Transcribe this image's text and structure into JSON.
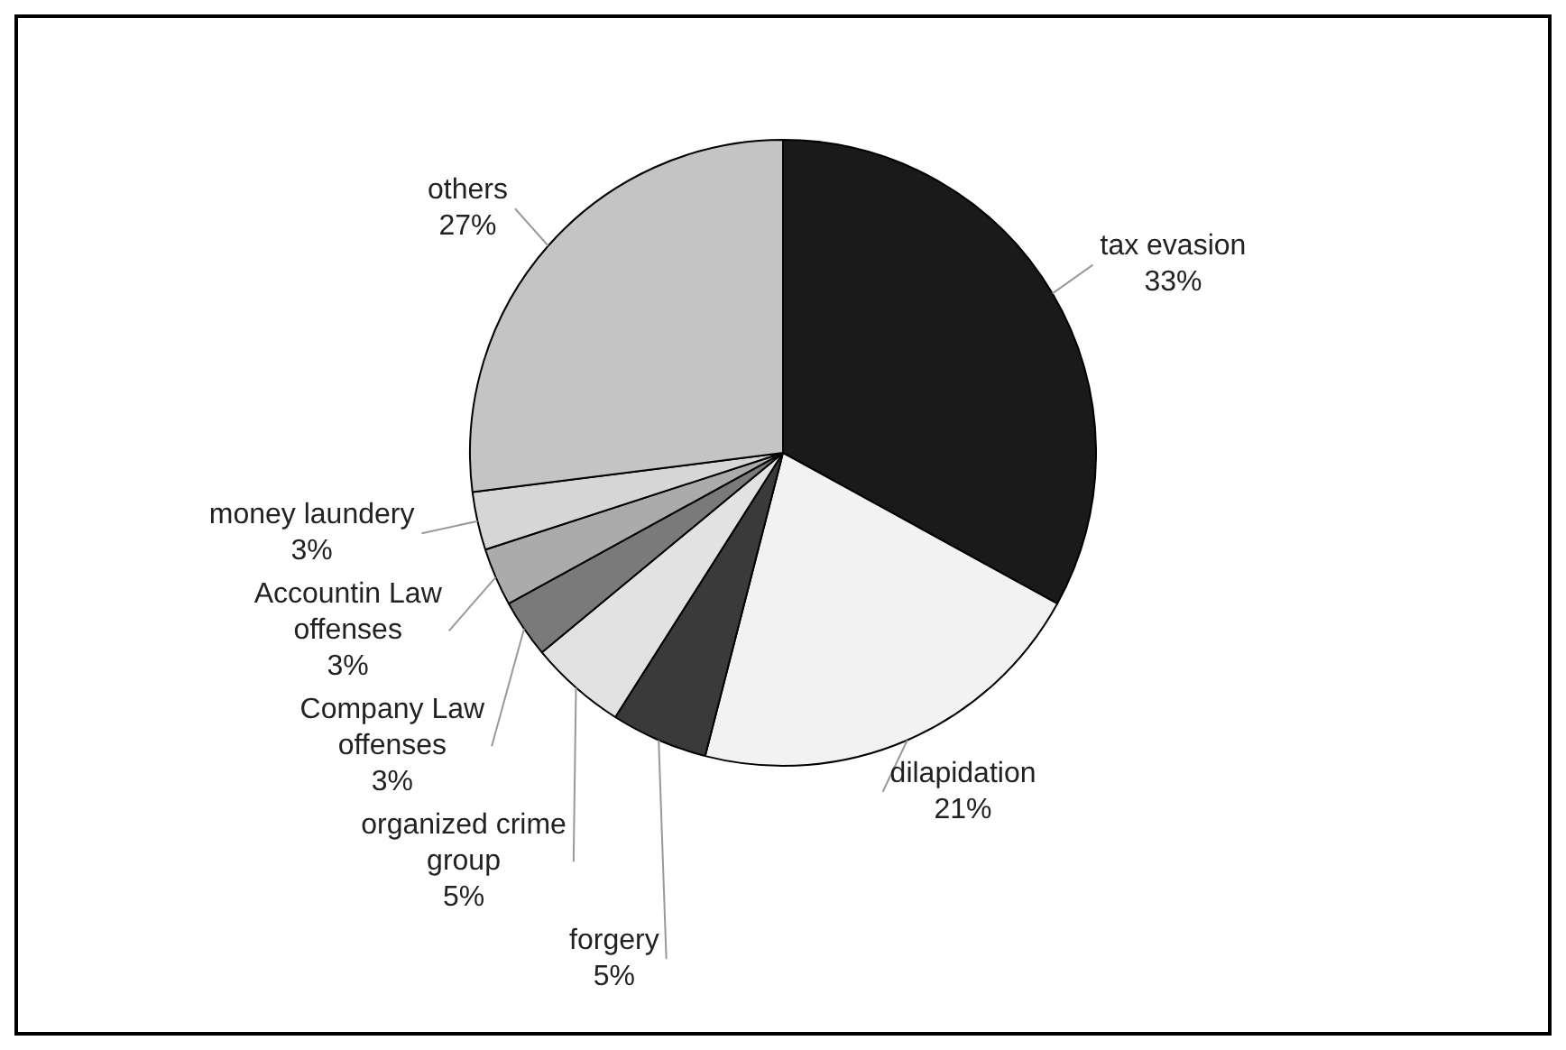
{
  "chart_data": {
    "type": "pie",
    "categories": [
      "tax evasion",
      "dilapidation",
      "forgery",
      "organized crime group",
      "Company Law offenses",
      "Accountin Law offenses",
      "money laundery",
      "others"
    ],
    "values": [
      33,
      21,
      5,
      5,
      3,
      3,
      3,
      27
    ],
    "value_labels": [
      "33%",
      "21%",
      "5%",
      "5%",
      "3%",
      "3%",
      "3%",
      "27%"
    ],
    "colors": [
      "#1a1a1a",
      "#f2f2f2",
      "#3a3a3a",
      "#e2e2e2",
      "#7a7a7a",
      "#ababab",
      "#d6d6d6",
      "#c4c4c4"
    ]
  }
}
